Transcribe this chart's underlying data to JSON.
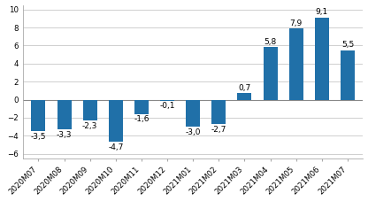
{
  "categories": [
    "2020M07",
    "2020M08",
    "2020M09",
    "2020M10",
    "2020M11",
    "2020M12",
    "2021M01",
    "2021M02",
    "2021M03",
    "2021M04",
    "2021M05",
    "2021M06",
    "2021M07"
  ],
  "values": [
    -3.5,
    -3.3,
    -2.3,
    -4.7,
    -1.6,
    -0.1,
    -3.0,
    -2.7,
    0.7,
    5.8,
    7.9,
    9.1,
    5.5
  ],
  "bar_color": "#2070a8",
  "ylim": [
    -6.5,
    10.5
  ],
  "yticks": [
    -6,
    -4,
    -2,
    0,
    2,
    4,
    6,
    8,
    10
  ],
  "background_color": "#ffffff",
  "grid_color": "#c8c8c8",
  "label_fontsize": 6.5,
  "tick_fontsize": 6.2,
  "bar_width": 0.55
}
